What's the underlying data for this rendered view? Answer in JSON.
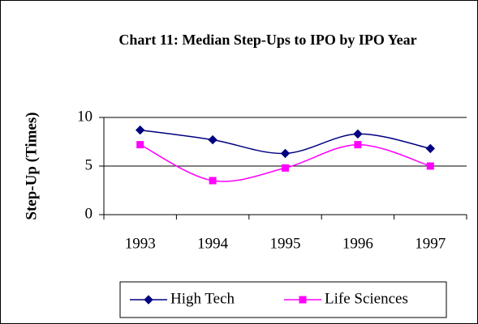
{
  "chart_data": {
    "type": "line",
    "title": "Chart 11: Median Step-Ups to IPO by IPO Year",
    "y_label": "Step-Up (Times)",
    "categories": [
      "1993",
      "1994",
      "1995",
      "1996",
      "1997"
    ],
    "series": [
      {
        "name": "High Tech",
        "color": "#000080",
        "marker": "diamond",
        "values": [
          8.7,
          7.7,
          6.3,
          8.3,
          6.8
        ]
      },
      {
        "name": "Life Sciences",
        "color": "#ff00ff",
        "marker": "square",
        "values": [
          7.2,
          3.5,
          4.8,
          7.2,
          5.0
        ]
      }
    ],
    "ylim": [
      0,
      10
    ],
    "yticks": [
      0,
      5,
      10
    ],
    "grid": true,
    "smooth": true,
    "legend": "bottom"
  }
}
